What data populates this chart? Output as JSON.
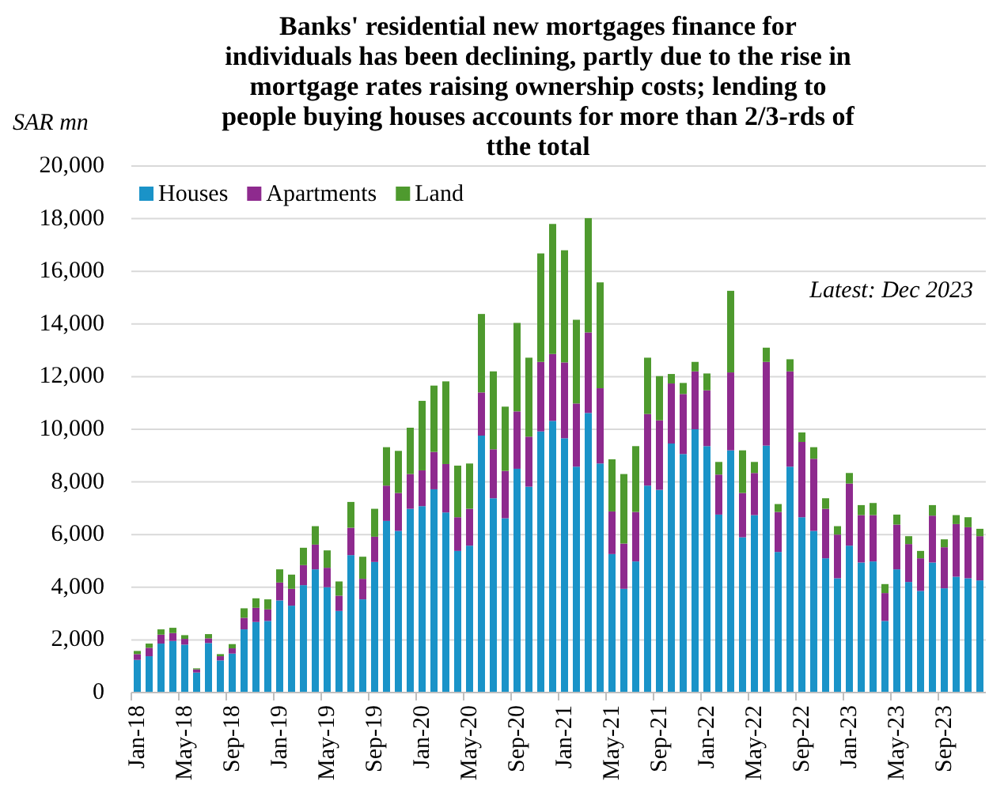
{
  "chart_data": {
    "type": "bar",
    "stacked": true,
    "title": "Banks' residential new mortgages finance for individuals has been declining, partly due to the rise in mortgage rates raising ownership costs; lending to people buying houses accounts for more than 2/3-rds of tthe total",
    "ylabel": "SAR mn",
    "annotations": [
      "Latest: Dec 2023"
    ],
    "categories": [
      "Jan-18",
      null,
      null,
      null,
      "May-18",
      null,
      null,
      null,
      "Sep-18",
      null,
      null,
      null,
      "Jan-19",
      null,
      null,
      null,
      "May-19",
      null,
      null,
      null,
      "Sep-19",
      null,
      null,
      null,
      "Jan-20",
      null,
      null,
      null,
      "May-20",
      null,
      null,
      null,
      "Sep-20",
      null,
      null,
      null,
      "Jan-21",
      null,
      null,
      null,
      "May-21",
      null,
      null,
      null,
      "Sep-21",
      null,
      null,
      null,
      "Jan-22",
      null,
      null,
      null,
      "May-22",
      null,
      null,
      null,
      "Sep-22",
      null,
      null,
      null,
      "Jan-23",
      null,
      null,
      null,
      "May-23",
      null,
      null,
      null,
      "Sep-23",
      null,
      null,
      null
    ],
    "series": [
      {
        "name": "Houses",
        "color": "#1a93c8",
        "values": [
          1240,
          1380,
          1860,
          1960,
          1820,
          760,
          1880,
          1220,
          1480,
          2400,
          2680,
          2720,
          3500,
          3300,
          4080,
          4680,
          4000,
          3100,
          5220,
          3540,
          4960,
          6520,
          6140,
          6980,
          7080,
          7720,
          6840,
          5380,
          5580,
          9760,
          7380,
          6620,
          8500,
          7820,
          9920,
          10320,
          9660,
          8580,
          10620,
          8700,
          5260,
          3940,
          4980,
          7860,
          7700,
          9460,
          9060,
          10000,
          9360,
          6760,
          9200,
          5900,
          6740,
          9380,
          5340,
          8580,
          6660,
          6140,
          5100,
          4340,
          5580,
          4940,
          4980,
          2720,
          4680,
          4200,
          3860,
          4940,
          3960,
          4400,
          4340,
          4260
        ]
      },
      {
        "name": "Apartments",
        "color": "#8e2a8e",
        "values": [
          220,
          320,
          340,
          300,
          220,
          120,
          180,
          160,
          200,
          440,
          540,
          440,
          680,
          640,
          760,
          940,
          740,
          580,
          1040,
          780,
          960,
          1340,
          1440,
          1320,
          1360,
          1420,
          1840,
          1280,
          1400,
          1640,
          1860,
          1800,
          2180,
          1900,
          2640,
          2540,
          2880,
          2400,
          3060,
          2860,
          1620,
          1720,
          1880,
          2720,
          2640,
          2280,
          2280,
          2200,
          2120,
          1520,
          2960,
          1680,
          1600,
          3180,
          1520,
          3620,
          2860,
          2740,
          1880,
          1660,
          2360,
          1800,
          1760,
          1060,
          1700,
          1440,
          1240,
          1780,
          1560,
          2000,
          1940,
          1680
        ]
      },
      {
        "name": "Land",
        "color": "#4e9a2e",
        "values": [
          120,
          160,
          200,
          200,
          140,
          40,
          160,
          80,
          160,
          360,
          360,
          380,
          500,
          540,
          660,
          700,
          660,
          540,
          980,
          840,
          1060,
          1460,
          1600,
          1760,
          2640,
          2520,
          3140,
          1960,
          1720,
          2980,
          2960,
          2440,
          3360,
          3000,
          4120,
          4940,
          4260,
          3180,
          4340,
          4020,
          1980,
          2640,
          2500,
          2140,
          1680,
          360,
          420,
          360,
          640,
          480,
          3100,
          1620,
          420,
          540,
          300,
          460,
          360,
          440,
          400,
          320,
          400,
          380,
          460,
          340,
          380,
          300,
          280,
          400,
          300,
          340,
          380,
          280
        ]
      }
    ],
    "ylim": [
      0,
      20000
    ],
    "yticks": [
      {
        "value": 0,
        "label": "0"
      },
      {
        "value": 2000,
        "label": "2,000"
      },
      {
        "value": 4000,
        "label": "4,000"
      },
      {
        "value": 6000,
        "label": "6,000"
      },
      {
        "value": 8000,
        "label": "8,000"
      },
      {
        "value": 10000,
        "label": "10,000"
      },
      {
        "value": 12000,
        "label": "12,000"
      },
      {
        "value": 14000,
        "label": "14,000"
      },
      {
        "value": 16000,
        "label": "16,000"
      },
      {
        "value": 18000,
        "label": "18,000"
      },
      {
        "value": 20000,
        "label": "20,000"
      }
    ],
    "grid": "y",
    "legend": "top left"
  }
}
